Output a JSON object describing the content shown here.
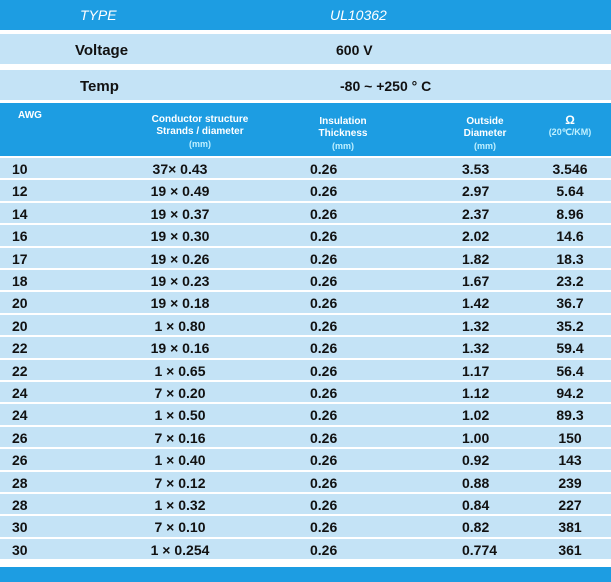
{
  "header": {
    "type_label": "TYPE",
    "type_value": "UL10362",
    "voltage_label": "Voltage",
    "voltage_value": "600 V",
    "temp_label": "Temp",
    "temp_value": "-80 ~ +250 ° C"
  },
  "table": {
    "columns": [
      [
        "AWG"
      ],
      [
        "Conductor structure",
        "Strands / diameter",
        "(mm)"
      ],
      [
        "Insulation",
        "Thickness",
        "(mm)"
      ],
      [
        "Outside",
        "Diameter",
        "(mm)"
      ],
      [
        "Ω",
        "(20℃/KM)"
      ]
    ],
    "rows": [
      [
        "10",
        "37× 0.43",
        "0.26",
        "3.53",
        "3.546"
      ],
      [
        "12",
        "19 × 0.49",
        "0.26",
        "2.97",
        "5.64"
      ],
      [
        "14",
        "19 × 0.37",
        "0.26",
        "2.37",
        "8.96"
      ],
      [
        "16",
        "19 × 0.30",
        "0.26",
        "2.02",
        "14.6"
      ],
      [
        "17",
        "19 × 0.26",
        "0.26",
        "1.82",
        "18.3"
      ],
      [
        "18",
        "19 × 0.23",
        "0.26",
        "1.67",
        "23.2"
      ],
      [
        "20",
        "19 × 0.18",
        "0.26",
        "1.42",
        "36.7"
      ],
      [
        "20",
        "1 × 0.80",
        "0.26",
        "1.32",
        "35.2"
      ],
      [
        "22",
        "19 × 0.16",
        "0.26",
        "1.32",
        "59.4"
      ],
      [
        "22",
        "1 × 0.65",
        "0.26",
        "1.17",
        "56.4"
      ],
      [
        "24",
        "7 × 0.20",
        "0.26",
        "1.12",
        "94.2"
      ],
      [
        "24",
        "1 × 0.50",
        "0.26",
        "1.02",
        "89.3"
      ],
      [
        "26",
        "7 × 0.16",
        "0.26",
        "1.00",
        "150"
      ],
      [
        "26",
        "1 × 0.40",
        "0.26",
        "0.92",
        "143"
      ],
      [
        "28",
        "7 × 0.12",
        "0.26",
        "0.88",
        "239"
      ],
      [
        "28",
        "1 × 0.32",
        "0.26",
        "0.84",
        "227"
      ],
      [
        "30",
        "7 × 0.10",
        "0.26",
        "0.82",
        "381"
      ],
      [
        "30",
        "1 × 0.254",
        "0.26",
        "0.774",
        "361"
      ]
    ]
  }
}
